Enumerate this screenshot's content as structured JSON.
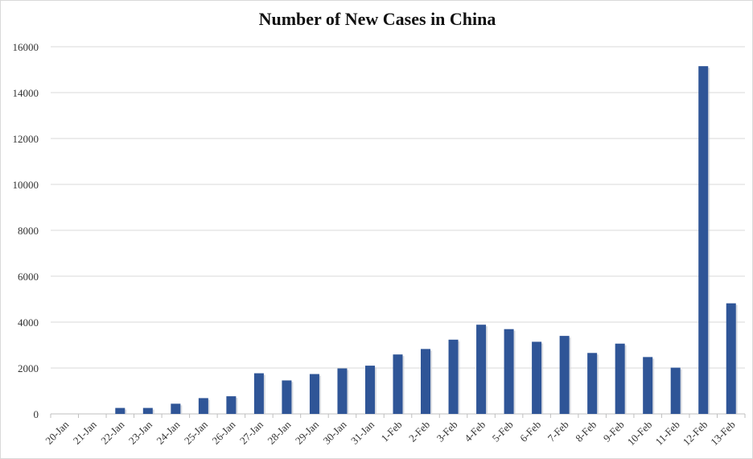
{
  "chart_data": {
    "type": "bar",
    "title": "Number of New Cases in China",
    "xlabel": "",
    "ylabel": "",
    "ylim": [
      0,
      16000
    ],
    "yticks": [
      0,
      2000,
      4000,
      6000,
      8000,
      10000,
      12000,
      14000,
      16000
    ],
    "grid": true,
    "color": "#2f5597",
    "categories": [
      "20-Jan",
      "21-Jan",
      "22-Jan",
      "23-Jan",
      "24-Jan",
      "25-Jan",
      "26-Jan",
      "27-Jan",
      "28-Jan",
      "29-Jan",
      "30-Jan",
      "31-Jan",
      "1-Feb",
      "2-Feb",
      "3-Feb",
      "4-Feb",
      "5-Feb",
      "6-Feb",
      "7-Feb",
      "8-Feb",
      "9-Feb",
      "10-Feb",
      "11-Feb",
      "12-Feb",
      "13-Feb"
    ],
    "values": [
      0,
      0,
      260,
      260,
      444,
      688,
      769,
      1771,
      1459,
      1737,
      1982,
      2102,
      2590,
      2829,
      3235,
      3887,
      3694,
      3143,
      3399,
      2656,
      3062,
      2478,
      2015,
      15152,
      4819
    ]
  }
}
